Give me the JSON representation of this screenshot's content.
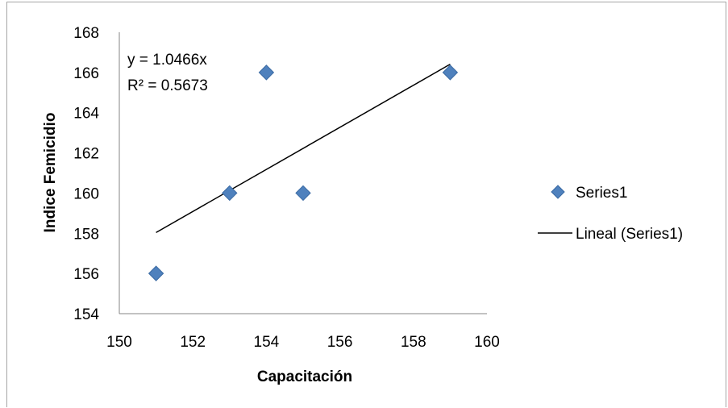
{
  "chart_data": {
    "type": "scatter",
    "title": "",
    "xlabel": "Capacitación",
    "ylabel": "Indice Femicidio",
    "xlim": [
      150,
      160
    ],
    "ylim": [
      154,
      168
    ],
    "x_ticks": [
      150,
      152,
      154,
      156,
      158,
      160
    ],
    "y_ticks": [
      154,
      156,
      158,
      160,
      162,
      164,
      166,
      168
    ],
    "grid": false,
    "legend_position": "right",
    "series": [
      {
        "name": "Series1",
        "marker": "diamond",
        "color": "#4f81bd",
        "points": [
          {
            "x": 151,
            "y": 156
          },
          {
            "x": 153,
            "y": 160
          },
          {
            "x": 154,
            "y": 166
          },
          {
            "x": 155,
            "y": 160
          },
          {
            "x": 159,
            "y": 166
          }
        ]
      }
    ],
    "trendline": {
      "name": "Lineal (Series1)",
      "slope": 1.0466,
      "x_range": [
        151,
        159
      ],
      "color": "#000000"
    },
    "annotations": {
      "equation": "y = 1.0466x",
      "r_squared": "R² = 0.5673"
    }
  }
}
